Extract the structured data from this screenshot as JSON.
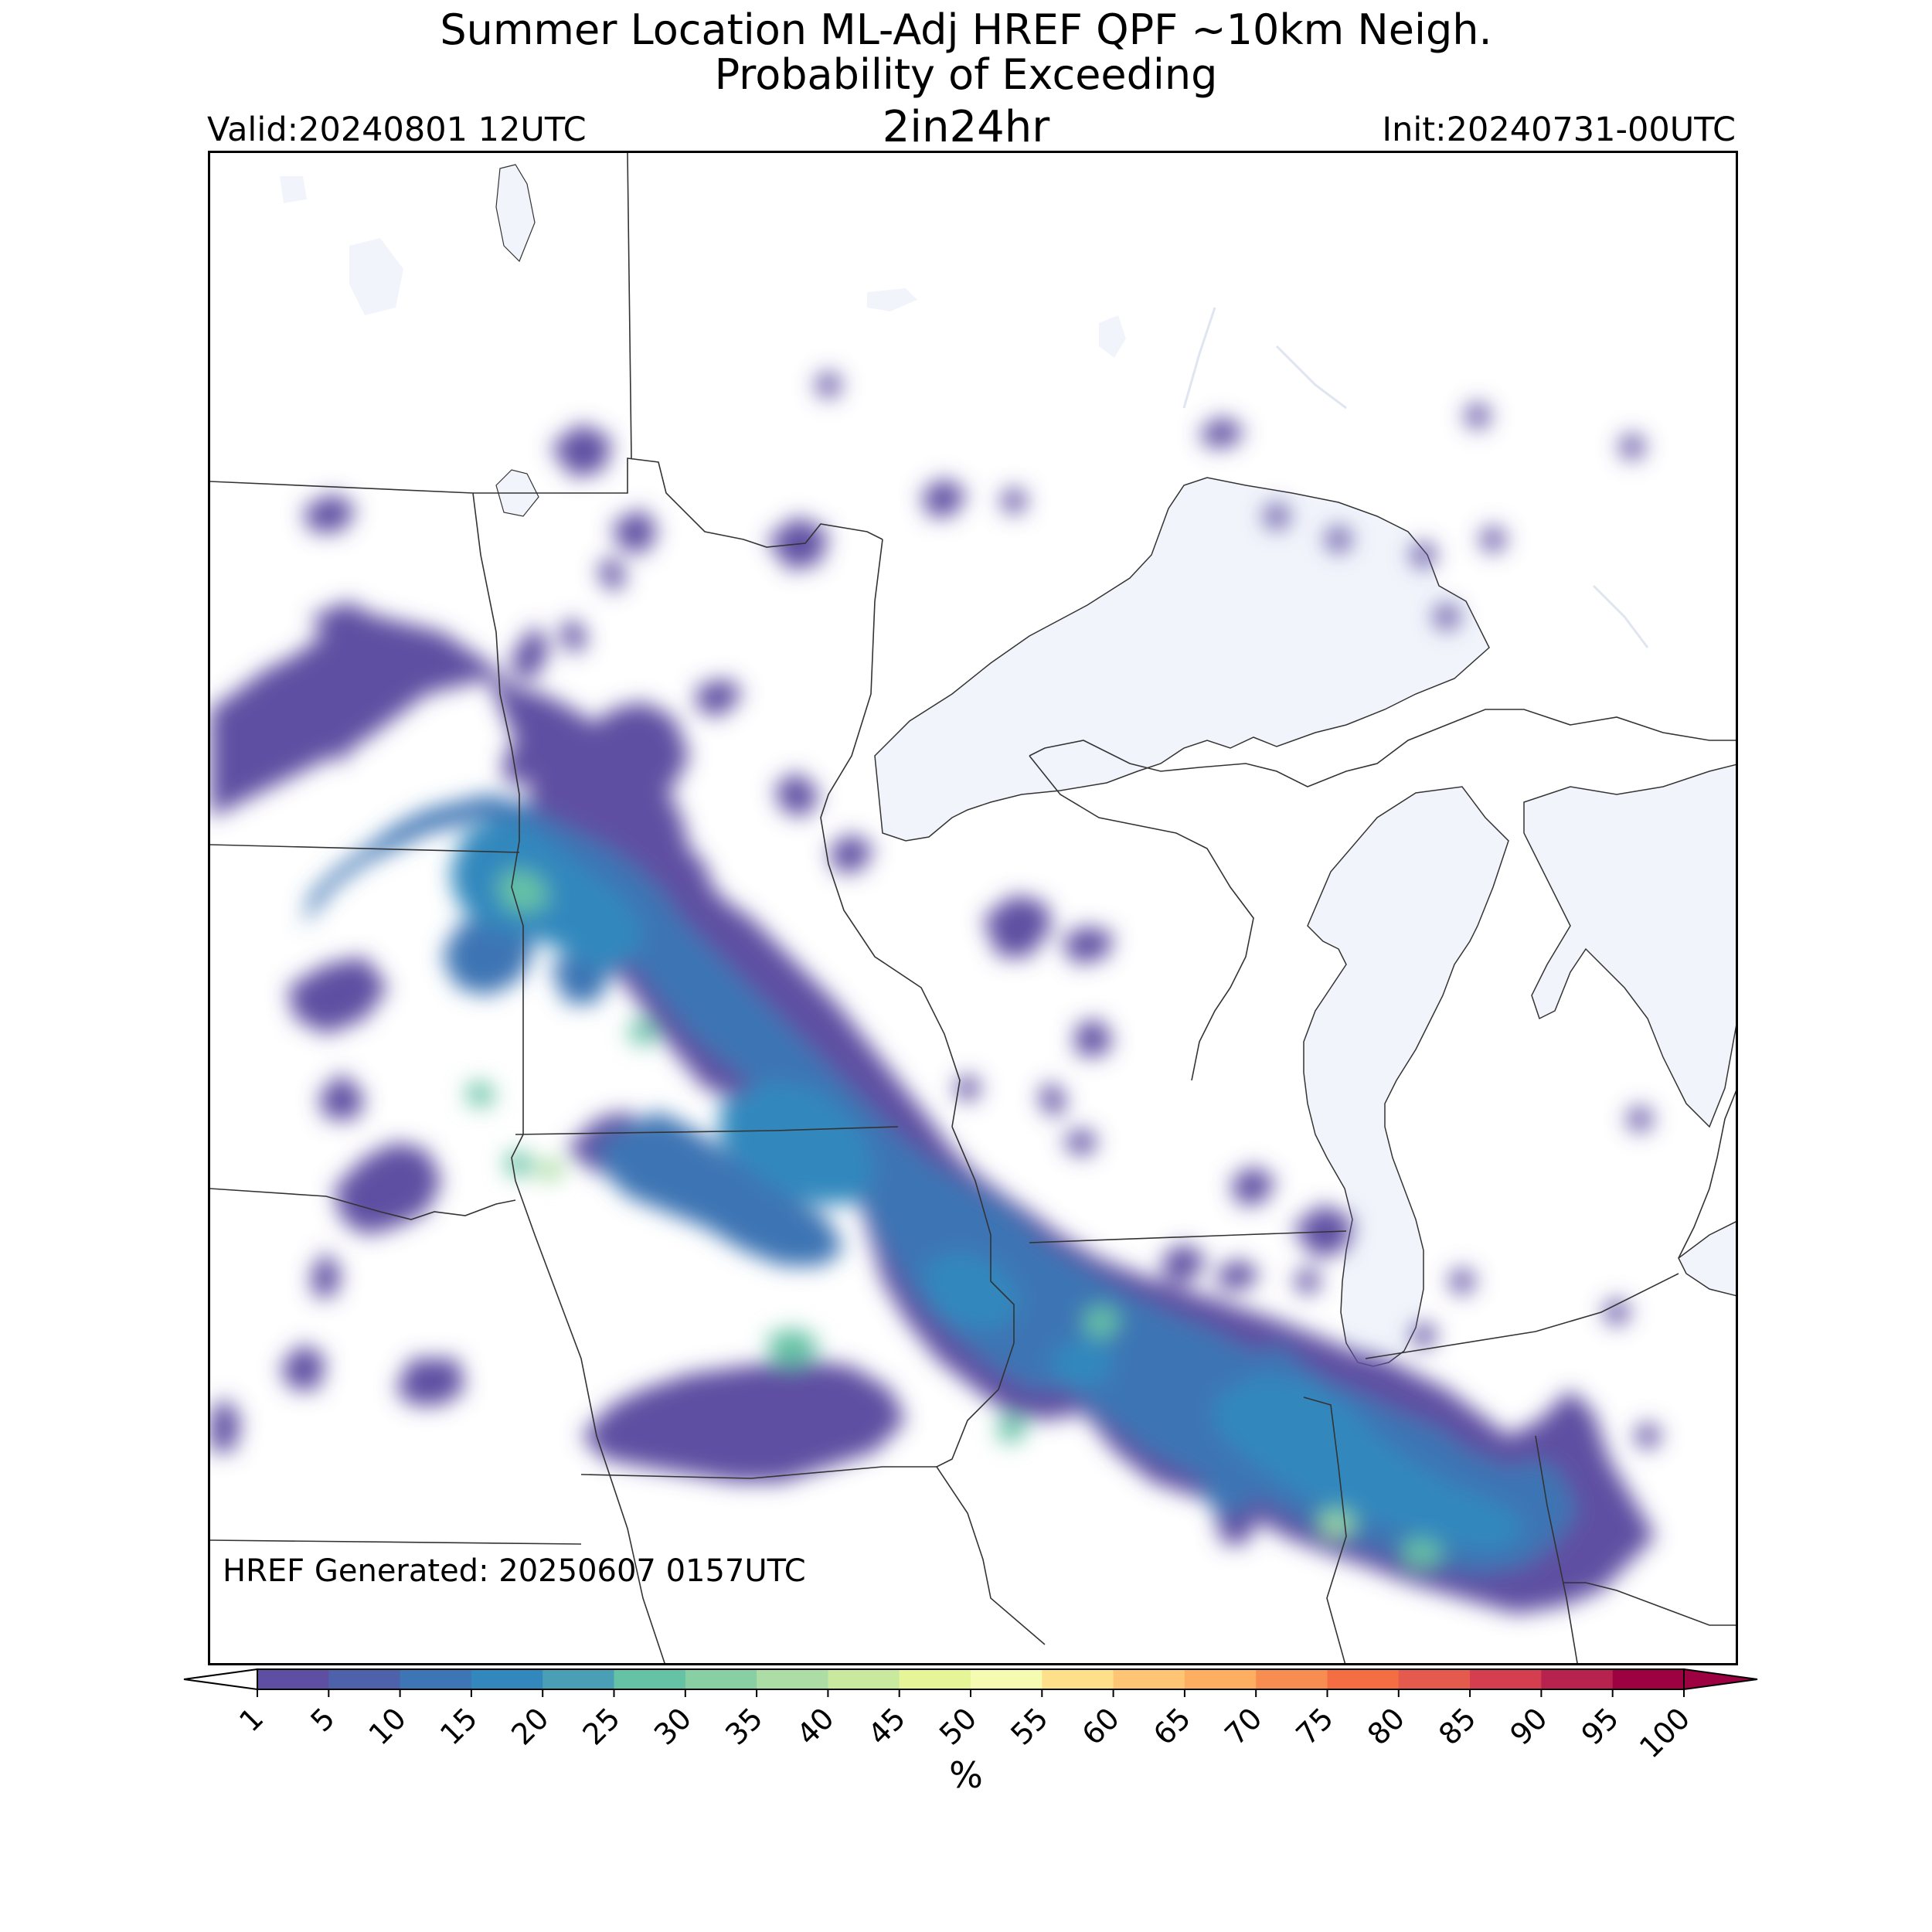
{
  "title": {
    "line1": "Summer Location ML-Adj HREF QPF ~10km Neigh.",
    "line2": "Probability of Exceeding",
    "line3": "2in24hr"
  },
  "valid_label": "Valid:20240801 12UTC",
  "init_label": "Init:20240731-00UTC",
  "generated_label": "HREF Generated: 20250607 0157UTC",
  "colorbar": {
    "unit": "%",
    "ticks": [
      "1",
      "5",
      "10",
      "15",
      "20",
      "25",
      "30",
      "35",
      "40",
      "45",
      "50",
      "55",
      "60",
      "65",
      "70",
      "75",
      "80",
      "85",
      "90",
      "95",
      "100"
    ],
    "colors": [
      "#5e4fa2",
      "#4e62ab",
      "#3e75b4",
      "#3288bd",
      "#4a9fb6",
      "#66c2a5",
      "#88cfa4",
      "#abdda4",
      "#c9ea9e",
      "#e6f598",
      "#f5fbb1",
      "#fee08b",
      "#fdc574",
      "#fdae61",
      "#f88d52",
      "#f46d43",
      "#e45a4c",
      "#d53e4f",
      "#b8224f",
      "#9e0142"
    ],
    "under_color": "#ffffff",
    "over_color": "#9e0142"
  },
  "colors": {
    "lake_fill": "#f1f5fb",
    "boundary": "#333333"
  }
}
